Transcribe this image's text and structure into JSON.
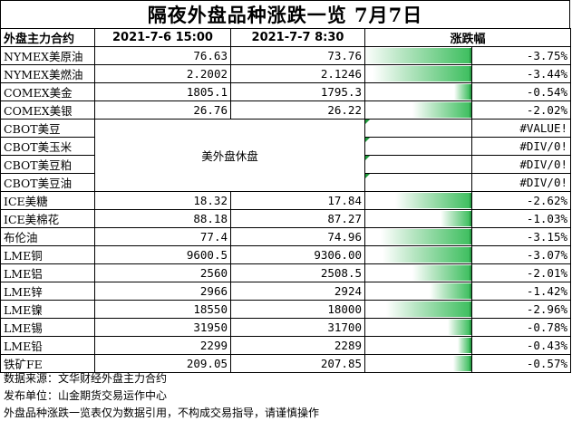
{
  "title": "隔夜外盘品种涨跌一览 7月7日",
  "header": {
    "col_name": "外盘主力合约",
    "col_prev": "2021-7-6 15:00",
    "col_curr": "2021-7-7 8:30",
    "col_change": "涨跌幅"
  },
  "rows": [
    {
      "name": "NYMEX美原油",
      "prev": "76.63",
      "curr": "73.76",
      "change": "-3.75%",
      "change_value": -3.75
    },
    {
      "name": "NYMEX美燃油",
      "prev": "2.2002",
      "curr": "2.1246",
      "change": "-3.44%",
      "change_value": -3.44
    },
    {
      "name": "COMEX美金",
      "prev": "1805.1",
      "curr": "1795.3",
      "change": "-0.54%",
      "change_value": -0.54
    },
    {
      "name": "COMEX美银",
      "prev": "26.76",
      "curr": "26.22",
      "change": "-2.02%",
      "change_value": -2.02
    },
    {
      "name": "CBOT美豆",
      "change": "#VALUE!",
      "merged": true
    },
    {
      "name": "CBOT美玉米",
      "change": "#DIV/0!",
      "merged": true
    },
    {
      "name": "CBOT美豆粕",
      "change": "#DIV/0!",
      "merged": true
    },
    {
      "name": "CBOT美豆油",
      "change": "#DIV/0!",
      "merged": true
    },
    {
      "name": "ICE美糖",
      "prev": "18.32",
      "curr": "17.84",
      "change": "-2.62%",
      "change_value": -2.62
    },
    {
      "name": "ICE美棉花",
      "prev": "88.18",
      "curr": "87.27",
      "change": "-1.03%",
      "change_value": -1.03
    },
    {
      "name": "布伦油",
      "prev": "77.4",
      "curr": "74.96",
      "change": "-3.15%",
      "change_value": -3.15
    },
    {
      "name": "LME铜",
      "prev": "9600.5",
      "curr": "9306.00",
      "change": "-3.07%",
      "change_value": -3.07
    },
    {
      "name": "LME铝",
      "prev": "2560",
      "curr": "2508.5",
      "change": "-2.01%",
      "change_value": -2.01
    },
    {
      "name": "LME锌",
      "prev": "2966",
      "curr": "2924",
      "change": "-1.42%",
      "change_value": -1.42
    },
    {
      "name": "LME镍",
      "prev": "18550",
      "curr": "18000",
      "change": "-2.96%",
      "change_value": -2.96
    },
    {
      "name": "LME锡",
      "prev": "31950",
      "curr": "31700",
      "change": "-0.78%",
      "change_value": -0.78
    },
    {
      "name": "LME铅",
      "prev": "2299",
      "curr": "2289",
      "change": "-0.43%",
      "change_value": -0.43
    },
    {
      "name": "铁矿FE",
      "prev": "209.05",
      "curr": "207.85",
      "change": "-0.57%",
      "change_value": -0.57
    }
  ],
  "merged_note": "美外盘休盘",
  "bar_max": 3.75,
  "bar_color": "#3fbf60",
  "footer": {
    "source": "数据来源：文华财经外盘主力合约",
    "publisher": "发布单位：山金期货交易运作中心",
    "disclaimer": "外盘品种涨跌一览表仅为数据引用，不构成交易指导，请谨慎操作"
  }
}
